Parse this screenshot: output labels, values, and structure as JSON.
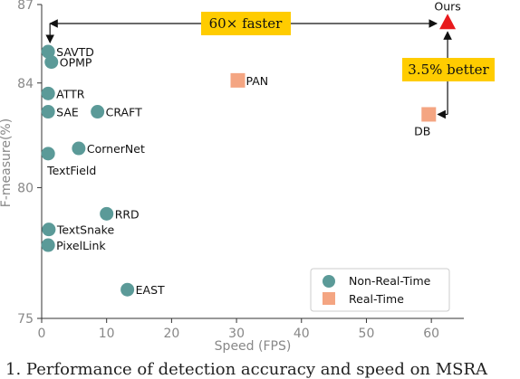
{
  "chart_data": {
    "type": "scatter",
    "title": "",
    "xlabel": "Speed (FPS)",
    "ylabel": "F-measure(%)",
    "xlim": [
      0,
      65
    ],
    "ylim": [
      75,
      87
    ],
    "xticks": [
      0,
      10,
      20,
      30,
      40,
      50,
      60
    ],
    "yticks": [
      75,
      80,
      84,
      87
    ],
    "series": [
      {
        "name": "Non-Real-Time",
        "marker": "circle",
        "color": "#5b9a98",
        "points": [
          {
            "label": "SAVTD",
            "x": 1.0,
            "y": 85.2
          },
          {
            "label": "OPMP",
            "x": 1.5,
            "y": 84.8
          },
          {
            "label": "ATTR",
            "x": 1.0,
            "y": 83.6
          },
          {
            "label": "SAE",
            "x": 1.0,
            "y": 82.9
          },
          {
            "label": "CRAFT",
            "x": 8.6,
            "y": 82.9
          },
          {
            "label": "CornerNet",
            "x": 5.7,
            "y": 81.5
          },
          {
            "label": "TextField",
            "x": 1.0,
            "y": 81.3
          },
          {
            "label": "RRD",
            "x": 10.0,
            "y": 79.0
          },
          {
            "label": "TextSnake",
            "x": 1.1,
            "y": 78.4
          },
          {
            "label": "PixelLink",
            "x": 1.0,
            "y": 77.8
          },
          {
            "label": "EAST",
            "x": 13.2,
            "y": 76.1
          }
        ]
      },
      {
        "name": "Real-Time",
        "marker": "square",
        "color": "#f4a582",
        "points": [
          {
            "label": "PAN",
            "x": 30.2,
            "y": 84.1
          },
          {
            "label": "DB",
            "x": 59.6,
            "y": 82.8
          }
        ]
      },
      {
        "name": "",
        "marker": "triangle",
        "color": "#e8191c",
        "points": [
          {
            "label": "Ours",
            "x": 62.5,
            "y": 86.3
          }
        ]
      }
    ],
    "annotations": {
      "speed": "60×  faster",
      "accuracy": "3.5%  better"
    },
    "legend_position": "bottom-right",
    "grid": false
  },
  "caption": "1. Performance of detection accuracy and speed on MSRA"
}
